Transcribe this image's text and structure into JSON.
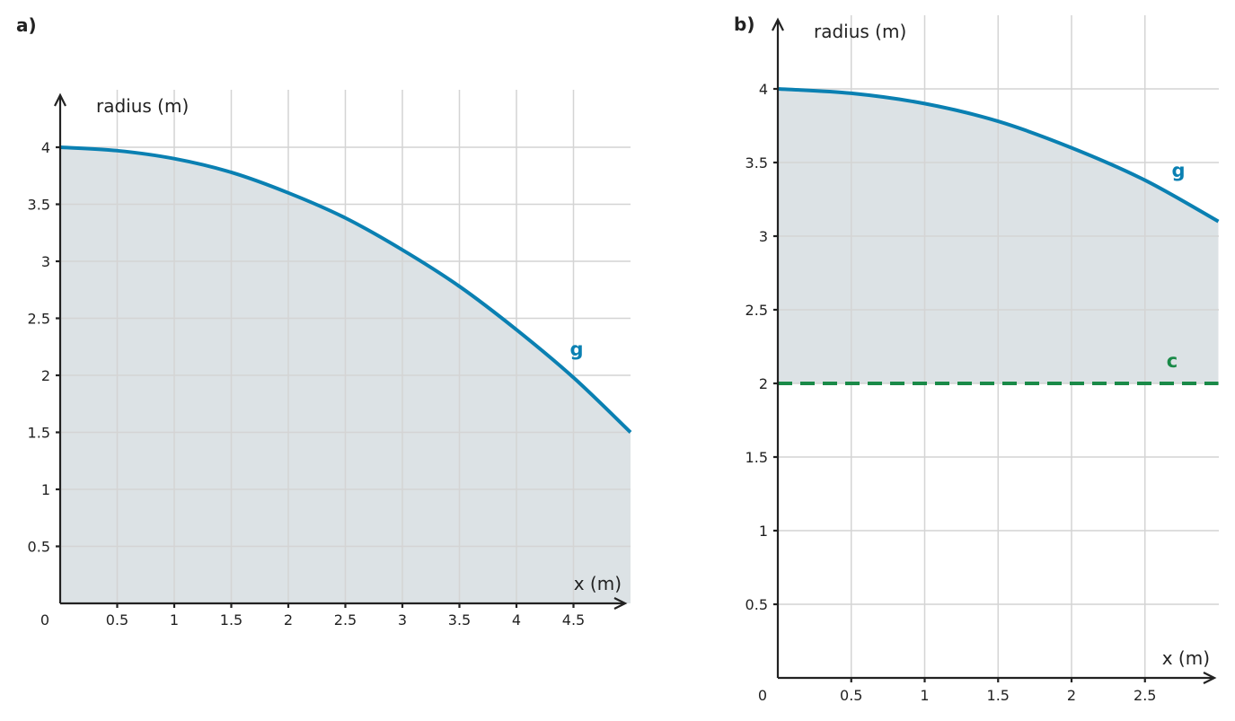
{
  "chart_data": [
    {
      "type": "area",
      "panel_label": "a)",
      "xlabel": "x (m)",
      "ylabel": "radius (m)",
      "xlim": [
        0,
        5
      ],
      "ylim": [
        0,
        4
      ],
      "origin_label": "0",
      "x_ticks": [
        0.5,
        1,
        1.5,
        2,
        2.5,
        3,
        3.5,
        4,
        4.5
      ],
      "x_tick_labels": [
        "0.5",
        "1",
        "1.5",
        "2",
        "2.5",
        "3",
        "3.5",
        "4",
        "4.5"
      ],
      "y_ticks": [
        0.5,
        1,
        1.5,
        2,
        2.5,
        3,
        3.5,
        4
      ],
      "y_tick_labels": [
        "0.5",
        "1",
        "1.5",
        "2",
        "2.5",
        "3",
        "3.5",
        "4"
      ],
      "grid": true,
      "series": [
        {
          "name": "g",
          "color": "#0a80b2",
          "style": "solid",
          "x": [
            0,
            0.5,
            1,
            1.5,
            2,
            2.5,
            3,
            3.5,
            4,
            4.5,
            5
          ],
          "y": [
            4,
            3.97,
            3.9,
            3.78,
            3.6,
            3.38,
            3.1,
            2.78,
            2.4,
            1.98,
            1.5
          ]
        }
      ],
      "fill": {
        "between": [
          "g",
          "x-axis"
        ],
        "color": "#dce2e5"
      }
    },
    {
      "type": "area",
      "panel_label": "b)",
      "xlabel": "x (m)",
      "ylabel": "radius (m)",
      "xlim": [
        0,
        3
      ],
      "ylim": [
        0,
        4
      ],
      "origin_label": "0",
      "x_ticks": [
        0.5,
        1,
        1.5,
        2,
        2.5
      ],
      "x_tick_labels": [
        "0.5",
        "1",
        "1.5",
        "2",
        "2.5"
      ],
      "y_ticks": [
        0.5,
        1,
        1.5,
        2,
        2.5,
        3,
        3.5,
        4
      ],
      "y_tick_labels": [
        "0.5",
        "1",
        "1.5",
        "2",
        "2.5",
        "3",
        "3.5",
        "4"
      ],
      "grid": true,
      "series": [
        {
          "name": "g",
          "color": "#0a80b2",
          "style": "solid",
          "x": [
            0,
            0.5,
            1,
            1.5,
            2,
            2.5,
            3
          ],
          "y": [
            4,
            3.97,
            3.9,
            3.78,
            3.6,
            3.38,
            3.1
          ]
        },
        {
          "name": "c",
          "color": "#1a8a48",
          "style": "dashed",
          "x": [
            0,
            3
          ],
          "y": [
            2,
            2
          ]
        }
      ],
      "fill": {
        "between": [
          "g",
          "c"
        ],
        "color": "#dce2e5"
      }
    }
  ]
}
